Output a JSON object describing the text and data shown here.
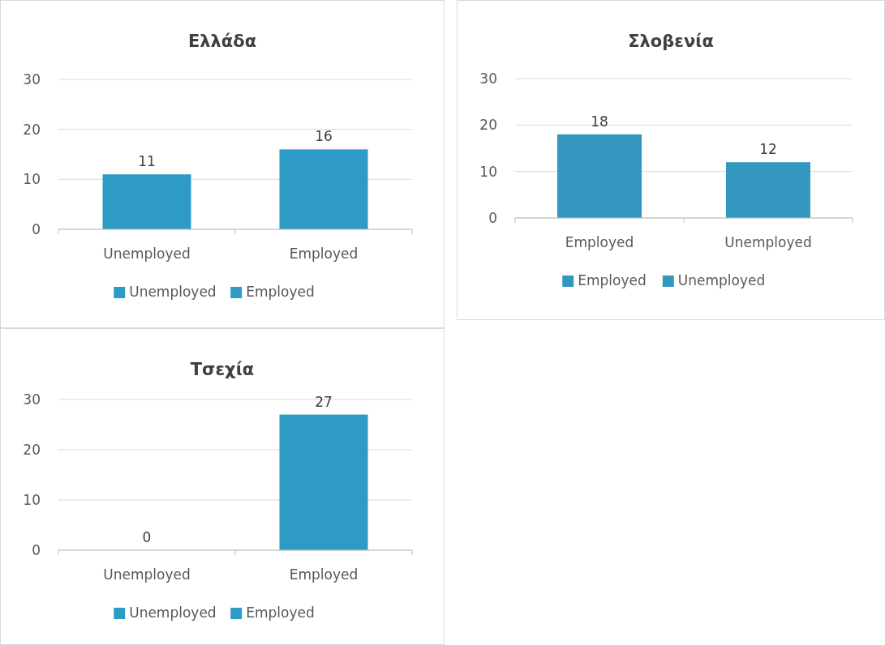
{
  "chart_data": [
    {
      "type": "bar",
      "title": "Ελλάδα",
      "categories": [
        "Unemployed",
        "Employed"
      ],
      "series": [
        {
          "name": "Unemployed",
          "color": "#2e9bc6",
          "values": [
            11,
            null
          ]
        },
        {
          "name": "Employed",
          "color": "#2e9bc6",
          "values": [
            null,
            16
          ]
        }
      ],
      "ylim": [
        0,
        30
      ],
      "yticks": [
        0,
        10,
        20,
        30
      ],
      "grid": "y",
      "data_labels": true,
      "legend": "bottom"
    },
    {
      "type": "bar",
      "title": "Σλοβενία",
      "categories": [
        "Employed",
        "Unemployed"
      ],
      "series": [
        {
          "name": "Employed",
          "color": "#3497bf",
          "values": [
            18,
            null
          ]
        },
        {
          "name": "Unemployed",
          "color": "#3497bf",
          "values": [
            null,
            12
          ]
        }
      ],
      "ylim": [
        0,
        30
      ],
      "yticks": [
        0,
        10,
        20,
        30
      ],
      "grid": "y",
      "data_labels": true,
      "legend": "bottom"
    },
    {
      "type": "bar",
      "title": "Τσεχία",
      "categories": [
        "Unemployed",
        "Employed"
      ],
      "series": [
        {
          "name": "Unemployed",
          "color": "#2e9bc6",
          "values": [
            0,
            null
          ]
        },
        {
          "name": "Employed",
          "color": "#2e9bc6",
          "values": [
            null,
            27
          ]
        }
      ],
      "ylim": [
        0,
        30
      ],
      "yticks": [
        0,
        10,
        20,
        30
      ],
      "grid": "y",
      "data_labels": true,
      "legend": "bottom"
    }
  ]
}
